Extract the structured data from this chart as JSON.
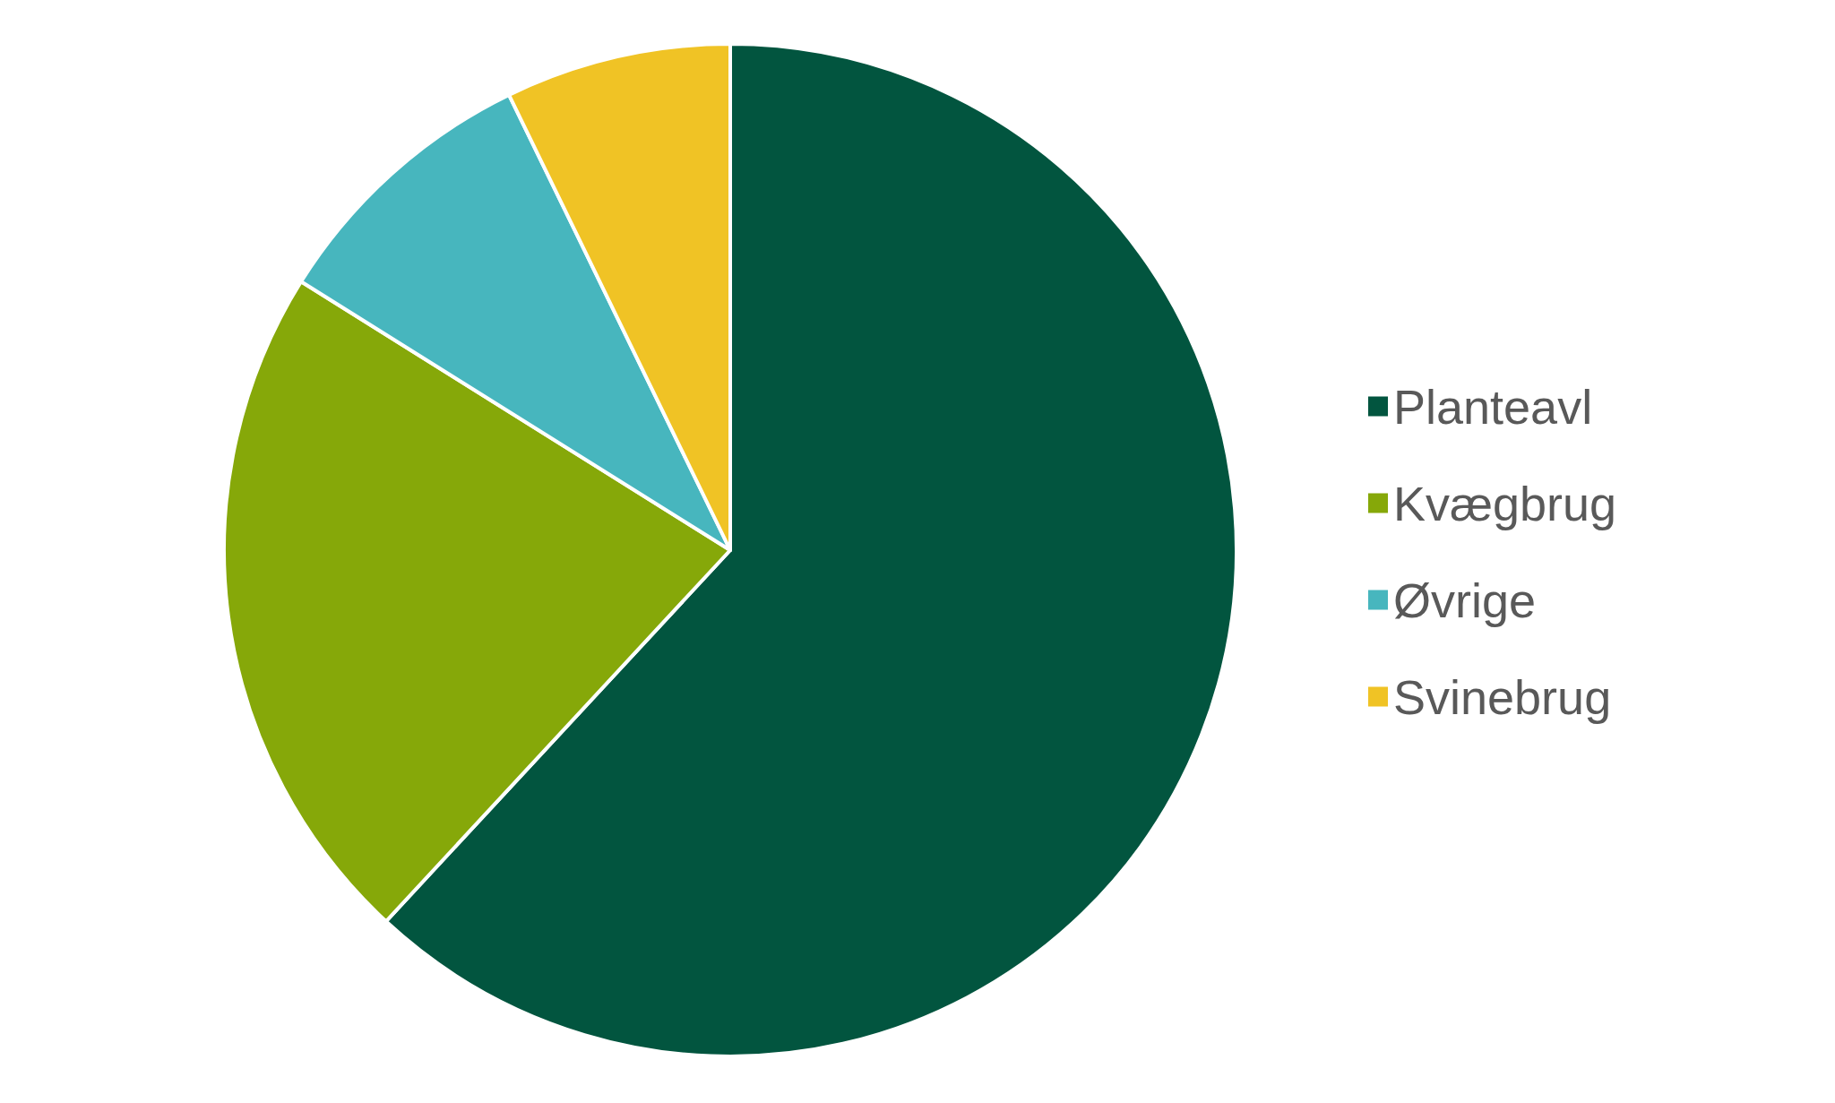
{
  "chart_data": {
    "type": "pie",
    "categories": [
      "Planteavl",
      "Kvægbrug",
      "Øvrige",
      "Svinebrug"
    ],
    "values": [
      61.9,
      22.0,
      8.9,
      7.2
    ],
    "colors": [
      "#02553f",
      "#86a809",
      "#47b6be",
      "#f0c325"
    ],
    "legend": "right"
  }
}
